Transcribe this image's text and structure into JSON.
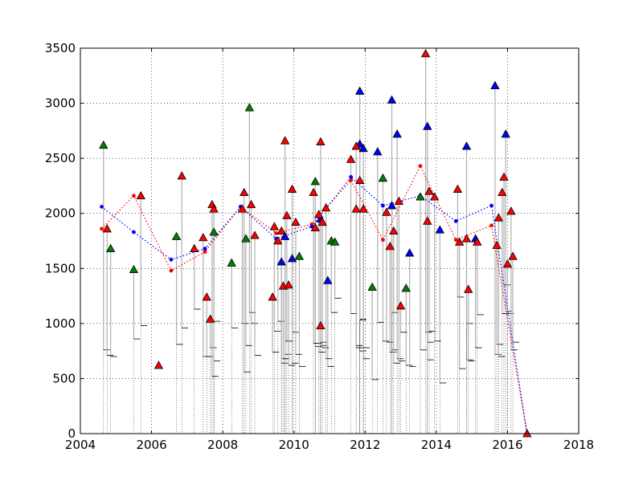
{
  "chart_data": {
    "type": "scatter",
    "title": "",
    "xlabel": "",
    "ylabel": "",
    "xlim": [
      2004,
      2018
    ],
    "ylim": [
      0,
      3500
    ],
    "grid": true,
    "grid_style": "dotted",
    "x_ticks": [
      "2004",
      "2006",
      "2008",
      "2010",
      "2012",
      "2014",
      "2016",
      "2018"
    ],
    "x_tick_values": [
      2004,
      2006,
      2008,
      2010,
      2012,
      2014,
      2016,
      2018
    ],
    "y_ticks": [
      "0",
      "500",
      "1000",
      "1500",
      "2000",
      "2500",
      "3000",
      "3500"
    ],
    "y_tick_values": [
      0,
      500,
      1000,
      1500,
      2000,
      2500,
      3000,
      3500
    ],
    "colors": {
      "red": "#ff0000",
      "green": "#008000",
      "blue": "#0000ff",
      "stem": "#b0b0b0",
      "whisker": "#000000"
    },
    "series": [
      {
        "color": "green",
        "marker": "triangle",
        "points": [
          [
            2004.65,
            2620,
            760
          ],
          [
            2004.85,
            1680,
            700
          ],
          [
            2005.5,
            1490,
            860
          ],
          [
            2006.7,
            1790,
            810
          ],
          [
            2007.75,
            1830,
            1020
          ],
          [
            2008.25,
            1550,
            960
          ],
          [
            2008.65,
            1770,
            800
          ],
          [
            2008.75,
            2960,
            1100
          ],
          [
            2010.15,
            1610,
            610
          ],
          [
            2010.6,
            2290,
            790
          ],
          [
            2011.05,
            1750,
            1100
          ],
          [
            2011.15,
            1740,
            1230
          ],
          [
            2012.2,
            1330,
            490
          ],
          [
            2012.5,
            2320,
            840
          ],
          [
            2013.15,
            1320,
            620
          ],
          [
            2013.55,
            2150,
            760
          ]
        ]
      },
      {
        "color": "blue",
        "marker": "triangle",
        "points": [
          [
            2009.65,
            1560,
            680
          ],
          [
            2009.75,
            1790,
            840
          ],
          [
            2009.95,
            1590,
            920
          ],
          [
            2010.75,
            1950,
            800
          ],
          [
            2010.95,
            1390,
            610
          ],
          [
            2011.85,
            3110,
            750
          ],
          [
            2011.85,
            2630,
            1040
          ],
          [
            2011.95,
            2590,
            680
          ],
          [
            2012.35,
            2560,
            1010
          ],
          [
            2012.75,
            2070,
            760
          ],
          [
            2012.75,
            3030,
            1100
          ],
          [
            2012.9,
            2720,
            680
          ],
          [
            2013.25,
            1640,
            610
          ],
          [
            2013.75,
            2790,
            830
          ],
          [
            2014.1,
            1850,
            460
          ],
          [
            2014.85,
            2610,
            670
          ],
          [
            2015.1,
            1770,
            780
          ],
          [
            2015.65,
            3160,
            720
          ],
          [
            2015.95,
            2720,
            1110
          ]
        ]
      },
      {
        "color": "red",
        "marker": "triangle",
        "points": [
          [
            2004.75,
            1860,
            710
          ],
          [
            2005.7,
            2160,
            980
          ],
          [
            2006.2,
            620,
            620
          ],
          [
            2006.85,
            2340,
            960
          ],
          [
            2007.2,
            1680,
            1130
          ],
          [
            2007.45,
            1780,
            700
          ],
          [
            2007.55,
            1240,
            700
          ],
          [
            2007.65,
            1040,
            780
          ],
          [
            2007.7,
            2080,
            520
          ],
          [
            2007.75,
            2040,
            660
          ],
          [
            2008.55,
            2040,
            1000
          ],
          [
            2008.6,
            2190,
            560
          ],
          [
            2008.8,
            2080,
            1000
          ],
          [
            2008.9,
            1800,
            710
          ],
          [
            2009.4,
            1240,
            740
          ],
          [
            2009.45,
            1880,
            930
          ],
          [
            2009.55,
            1750,
            1020
          ],
          [
            2009.65,
            1840,
            640
          ],
          [
            2009.7,
            1340,
            680
          ],
          [
            2009.75,
            2660,
            720
          ],
          [
            2009.8,
            1980,
            840
          ],
          [
            2009.85,
            1350,
            620
          ],
          [
            2009.95,
            2220,
            640
          ],
          [
            2010.05,
            1920,
            720
          ],
          [
            2010.55,
            2190,
            820
          ],
          [
            2010.6,
            1870,
            820
          ],
          [
            2010.7,
            1990,
            740
          ],
          [
            2010.75,
            2650,
            830
          ],
          [
            2010.75,
            980,
            980
          ],
          [
            2010.8,
            1920,
            780
          ],
          [
            2010.9,
            2050,
            680
          ],
          [
            2011.6,
            2490,
            1090
          ],
          [
            2011.75,
            2610,
            780
          ],
          [
            2011.75,
            2040,
            800
          ],
          [
            2011.85,
            2300,
            1030
          ],
          [
            2011.95,
            2040,
            780
          ],
          [
            2012.6,
            2010,
            830
          ],
          [
            2012.7,
            1700,
            740
          ],
          [
            2012.8,
            1840,
            640
          ],
          [
            2012.95,
            2110,
            660
          ],
          [
            2013.0,
            1160,
            920
          ],
          [
            2013.7,
            3450,
            920
          ],
          [
            2013.75,
            1930,
            670
          ],
          [
            2013.8,
            2200,
            930
          ],
          [
            2013.95,
            2150,
            840
          ],
          [
            2014.6,
            2220,
            1240
          ],
          [
            2014.65,
            1740,
            590
          ],
          [
            2014.85,
            1770,
            1000
          ],
          [
            2014.9,
            1310,
            660
          ],
          [
            2015.15,
            1740,
            1080
          ],
          [
            2015.7,
            1710,
            810
          ],
          [
            2015.75,
            1960,
            700
          ],
          [
            2015.85,
            2190,
            1090
          ],
          [
            2015.9,
            2330,
            1350
          ],
          [
            2016.0,
            1540,
            1090
          ],
          [
            2016.1,
            2020,
            760
          ],
          [
            2016.15,
            1610,
            830
          ],
          [
            2016.55,
            0,
            0
          ]
        ]
      }
    ],
    "trend_lines": [
      {
        "color": "red",
        "style": "dotted",
        "x": [
          2004.6,
          2005.5,
          2006.55,
          2007.5,
          2008.5,
          2009.5,
          2010.5,
          2011.6,
          2012.5,
          2013.55,
          2014.55,
          2015.55,
          2016.55
        ],
        "y": [
          1860,
          2160,
          1480,
          1650,
          2060,
          1820,
          1900,
          2300,
          1760,
          2430,
          1760,
          1890,
          0
        ]
      },
      {
        "color": "blue",
        "style": "dotted",
        "x": [
          2004.6,
          2005.5,
          2006.55,
          2007.5,
          2008.5,
          2009.5,
          2010.5,
          2011.6,
          2012.5,
          2013.55,
          2014.55,
          2015.55,
          2016.55
        ],
        "y": [
          2060,
          1830,
          1580,
          1680,
          2060,
          1770,
          1880,
          2330,
          2070,
          2160,
          1930,
          2070,
          0
        ]
      }
    ]
  }
}
